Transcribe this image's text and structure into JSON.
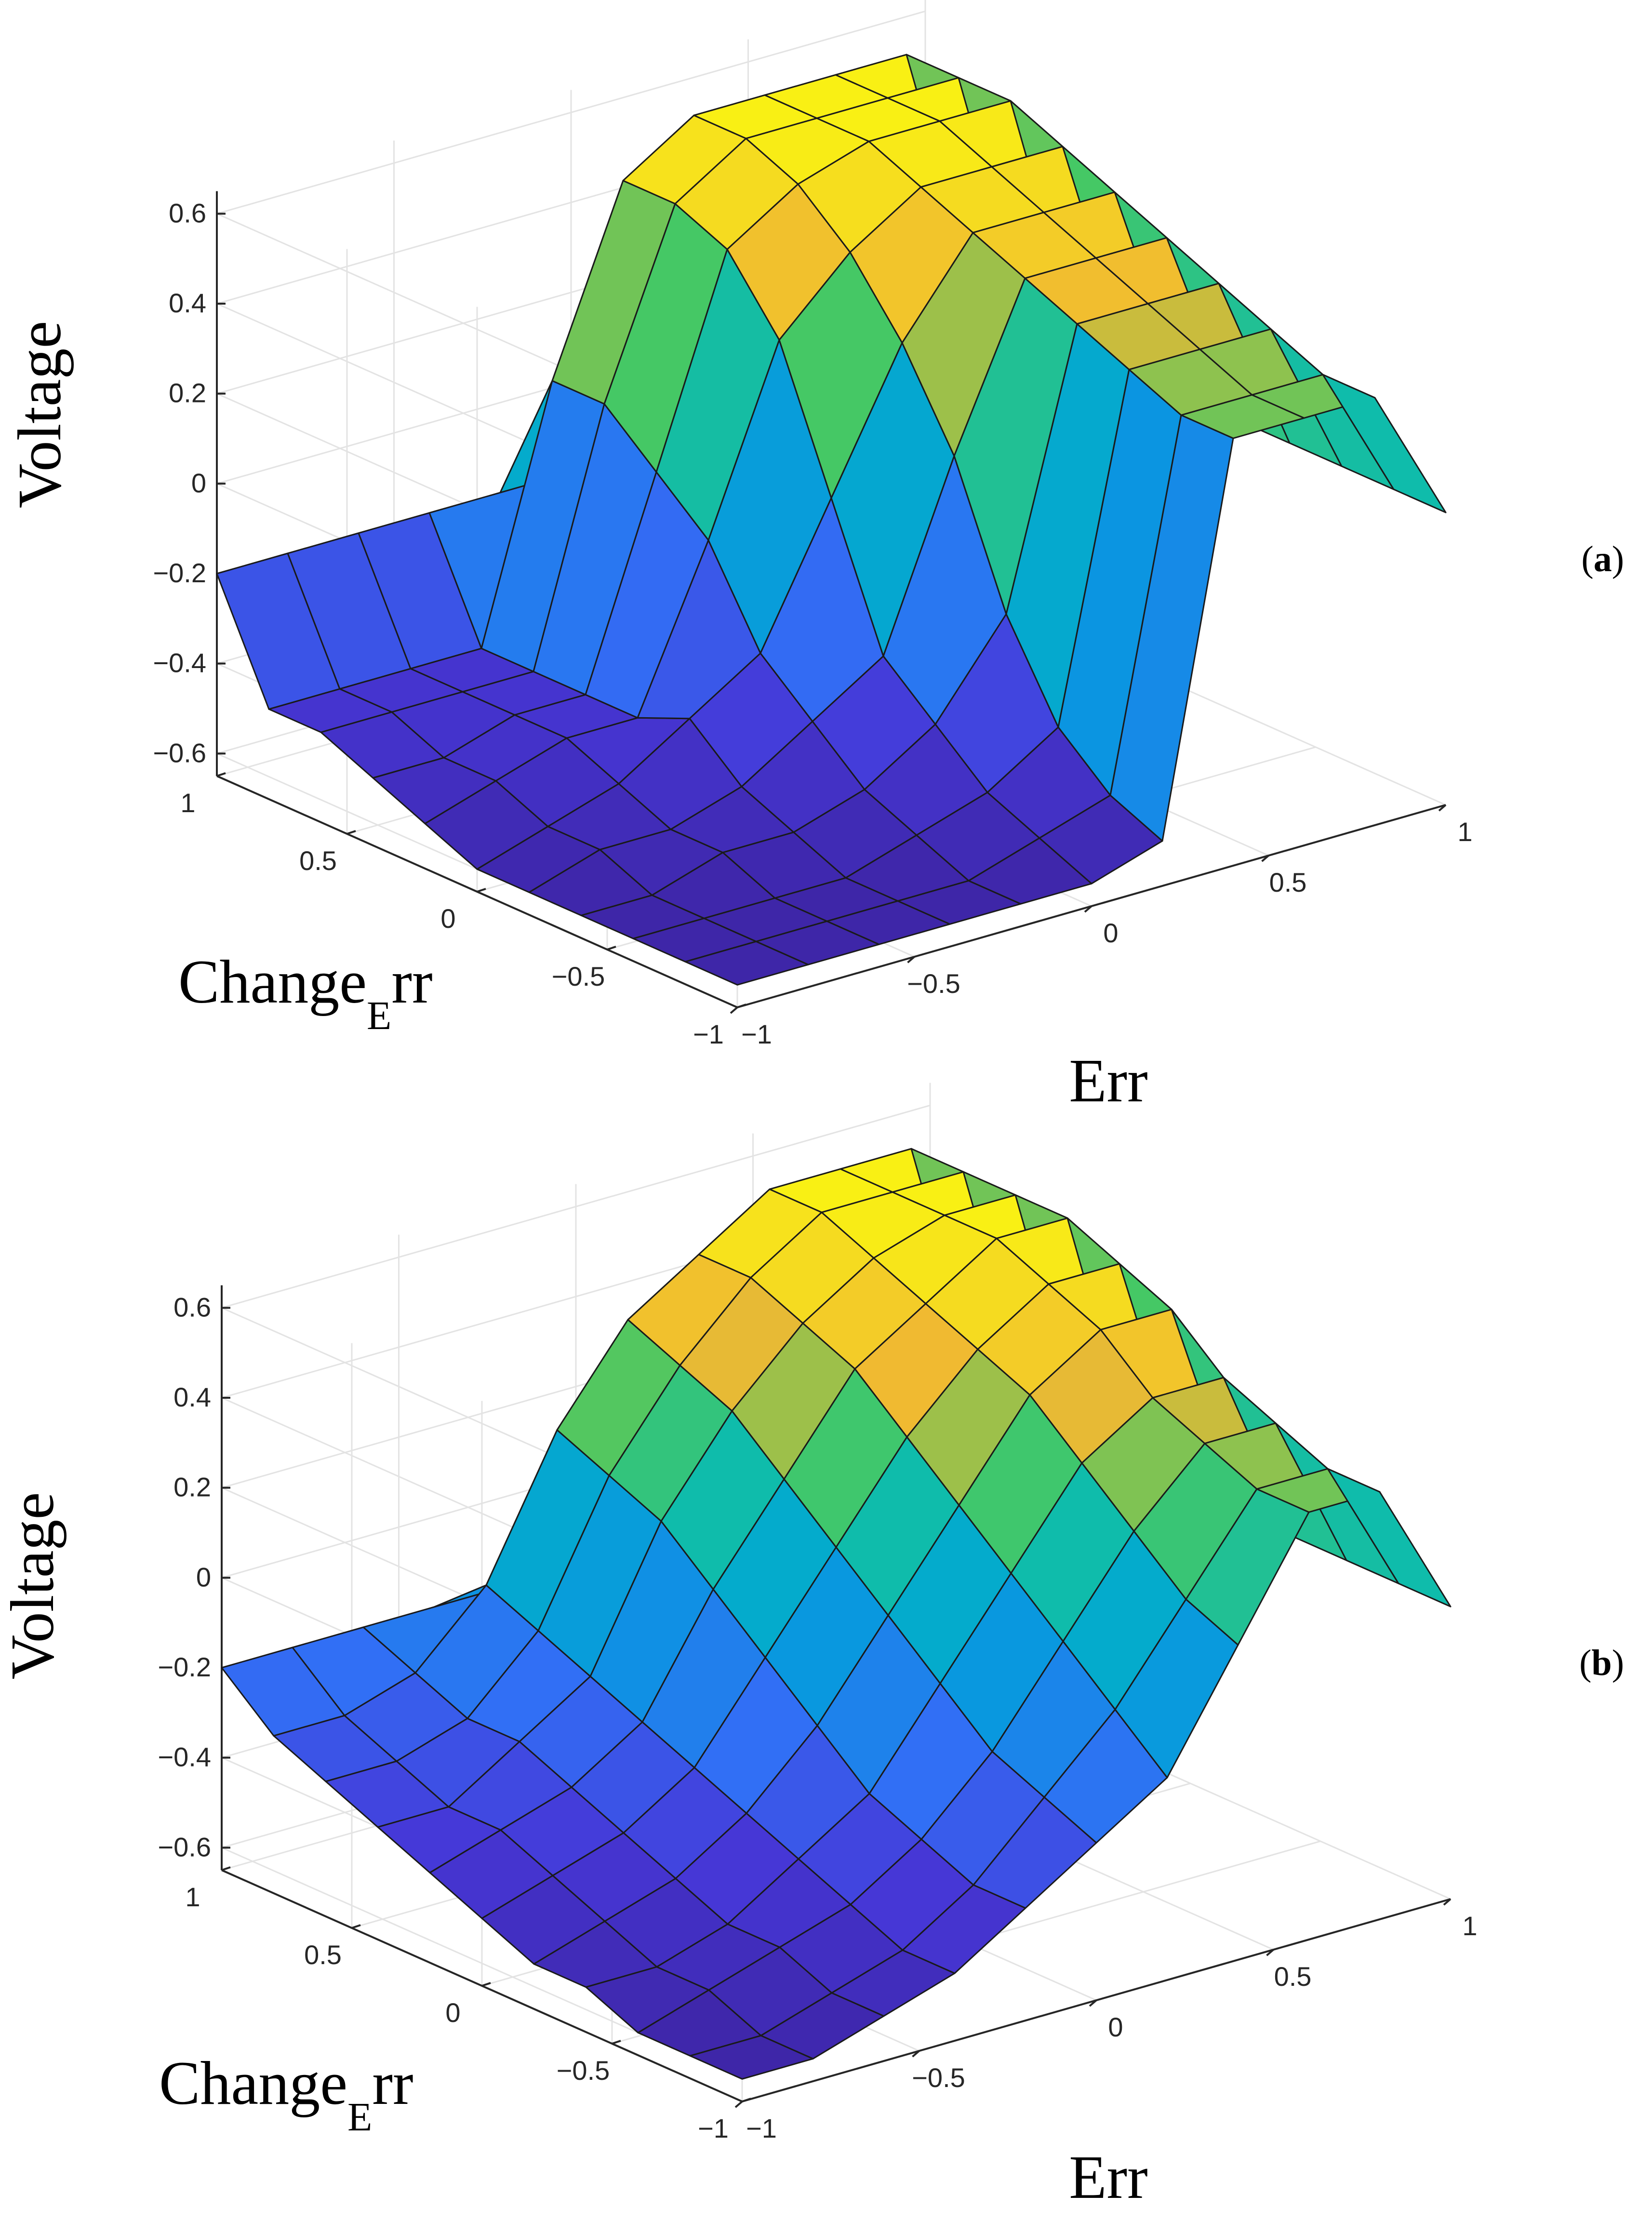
{
  "figure": {
    "panel_labels": [
      {
        "open": "(",
        "letter": "a",
        "close": ")"
      },
      {
        "open": "(",
        "letter": "b",
        "close": ")"
      }
    ]
  },
  "chart_data": [
    {
      "type": "surface",
      "panel": "a",
      "title": "",
      "xlabel": "Err",
      "ylabel": {
        "main": "Change",
        "sub": "E",
        "rest": "rr"
      },
      "zlabel": "Voltage",
      "xlim": [
        -1,
        1
      ],
      "ylim": [
        -1,
        1
      ],
      "zlim": [
        -0.65,
        0.65
      ],
      "x_ticks": [
        "−1",
        "−0.5",
        "0",
        "0.5",
        "1"
      ],
      "y_ticks": [
        "−1",
        "−0.5",
        "0",
        "0.5",
        "1"
      ],
      "z_ticks": [
        "−0.6",
        "−0.4",
        "−0.2",
        "0",
        "0.2",
        "0.4",
        "0.6"
      ],
      "x_tick_values": [
        -1,
        -0.5,
        0,
        0.5,
        1
      ],
      "y_tick_values": [
        -1,
        -0.5,
        0,
        0.5,
        1
      ],
      "z_tick_values": [
        -0.6,
        -0.4,
        -0.2,
        0,
        0.2,
        0.4,
        0.6
      ],
      "grid": true,
      "colormap": "parula",
      "surface": {
        "x": [
          -1,
          -0.8,
          -0.6,
          -0.4,
          -0.2,
          0,
          0.2,
          0.4,
          0.6,
          0.8,
          1
        ],
        "y": [
          -1,
          -0.8,
          -0.6,
          -0.4,
          -0.2,
          0,
          0.2,
          0.4,
          0.6,
          0.8,
          1
        ],
        "z": [
          [
            -0.6,
            -0.6,
            -0.6,
            -0.6,
            -0.6,
            -0.6,
            -0.55,
            0.3,
            0.3,
            0.3,
            0.0
          ],
          [
            -0.6,
            -0.6,
            -0.6,
            -0.6,
            -0.6,
            -0.55,
            -0.5,
            0.3,
            0.3,
            0.3,
            0.0
          ],
          [
            -0.6,
            -0.6,
            -0.6,
            -0.6,
            -0.55,
            -0.5,
            -0.4,
            0.35,
            0.35,
            0.35,
            0.0
          ],
          [
            -0.6,
            -0.6,
            -0.55,
            -0.55,
            -0.5,
            -0.4,
            -0.2,
            0.4,
            0.4,
            0.4,
            0.0
          ],
          [
            -0.6,
            -0.55,
            -0.55,
            -0.5,
            -0.4,
            -0.3,
            0.1,
            0.45,
            0.45,
            0.45,
            0.0
          ],
          [
            -0.6,
            -0.55,
            -0.5,
            -0.4,
            -0.3,
            0.0,
            0.3,
            0.5,
            0.5,
            0.5,
            0.0
          ],
          [
            -0.55,
            -0.5,
            -0.45,
            -0.45,
            -0.1,
            0.3,
            0.45,
            0.55,
            0.55,
            0.55,
            0.0
          ],
          [
            -0.5,
            -0.5,
            -0.45,
            -0.45,
            0.0,
            0.45,
            0.55,
            0.6,
            0.6,
            0.6,
            0.0
          ],
          [
            -0.45,
            -0.45,
            -0.45,
            -0.45,
            0.1,
            0.5,
            0.6,
            0.6,
            0.6,
            0.6,
            0.0
          ],
          [
            -0.45,
            -0.45,
            -0.45,
            -0.45,
            0.1,
            0.5,
            0.6,
            0.6,
            0.6,
            0.6,
            0.0
          ],
          [
            -0.2,
            -0.2,
            -0.2,
            -0.2,
            -0.2,
            -0.2,
            -0.2,
            -0.2,
            -0.2,
            -0.2,
            0.0
          ]
        ]
      }
    },
    {
      "type": "surface",
      "panel": "b",
      "title": "",
      "xlabel": "Err",
      "ylabel": {
        "main": "Change",
        "sub": "E",
        "rest": "rr"
      },
      "zlabel": "Voltage",
      "xlim": [
        -1,
        1
      ],
      "ylim": [
        -1,
        1
      ],
      "zlim": [
        -0.65,
        0.65
      ],
      "x_ticks": [
        "−1",
        "−0.5",
        "0",
        "0.5",
        "1"
      ],
      "y_ticks": [
        "−1",
        "−0.5",
        "0",
        "0.5",
        "1"
      ],
      "z_ticks": [
        "−0.6",
        "−0.4",
        "−0.2",
        "0",
        "0.2",
        "0.4",
        "0.6"
      ],
      "x_tick_values": [
        -1,
        -0.5,
        0,
        0.5,
        1
      ],
      "y_tick_values": [
        -1,
        -0.5,
        0,
        0.5,
        1
      ],
      "z_tick_values": [
        -0.6,
        -0.4,
        -0.2,
        0,
        0.2,
        0.4,
        0.6
      ],
      "grid": true,
      "colormap": "parula",
      "surface": {
        "x": [
          -1,
          -0.8,
          -0.6,
          -0.4,
          -0.2,
          0,
          0.2,
          0.4,
          0.6,
          0.8,
          1
        ],
        "y": [
          -1,
          -0.8,
          -0.6,
          -0.4,
          -0.2,
          0,
          0.2,
          0.4,
          0.6,
          0.8,
          1
        ],
        "z": [
          [
            -0.6,
            -0.6,
            -0.55,
            -0.5,
            -0.4,
            -0.3,
            -0.2,
            0.05,
            0.3,
            0.3,
            0.0
          ],
          [
            -0.6,
            -0.6,
            -0.55,
            -0.5,
            -0.4,
            -0.25,
            -0.1,
            0.1,
            0.3,
            0.3,
            0.0
          ],
          [
            -0.6,
            -0.55,
            -0.5,
            -0.45,
            -0.35,
            -0.2,
            0.0,
            0.2,
            0.35,
            0.35,
            0.0
          ],
          [
            -0.55,
            -0.55,
            -0.5,
            -0.4,
            -0.3,
            -0.1,
            0.1,
            0.3,
            0.4,
            0.4,
            0.0
          ],
          [
            -0.55,
            -0.5,
            -0.45,
            -0.35,
            -0.2,
            0.0,
            0.2,
            0.4,
            0.5,
            0.5,
            0.0
          ],
          [
            -0.5,
            -0.45,
            -0.4,
            -0.3,
            -0.1,
            0.1,
            0.3,
            0.45,
            0.55,
            0.55,
            0.0
          ],
          [
            -0.45,
            -0.4,
            -0.35,
            -0.25,
            0.0,
            0.2,
            0.4,
            0.5,
            0.6,
            0.6,
            0.0
          ],
          [
            -0.4,
            -0.4,
            -0.3,
            -0.2,
            0.1,
            0.3,
            0.45,
            0.55,
            0.6,
            0.6,
            0.0
          ],
          [
            -0.35,
            -0.35,
            -0.3,
            -0.15,
            0.15,
            0.35,
            0.5,
            0.6,
            0.6,
            0.6,
            0.0
          ],
          [
            -0.3,
            -0.3,
            -0.25,
            -0.1,
            0.2,
            0.4,
            0.5,
            0.6,
            0.6,
            0.6,
            0.0
          ],
          [
            -0.2,
            -0.2,
            -0.2,
            -0.2,
            -0.2,
            -0.2,
            -0.2,
            -0.2,
            -0.2,
            -0.2,
            0.0
          ]
        ]
      }
    }
  ]
}
